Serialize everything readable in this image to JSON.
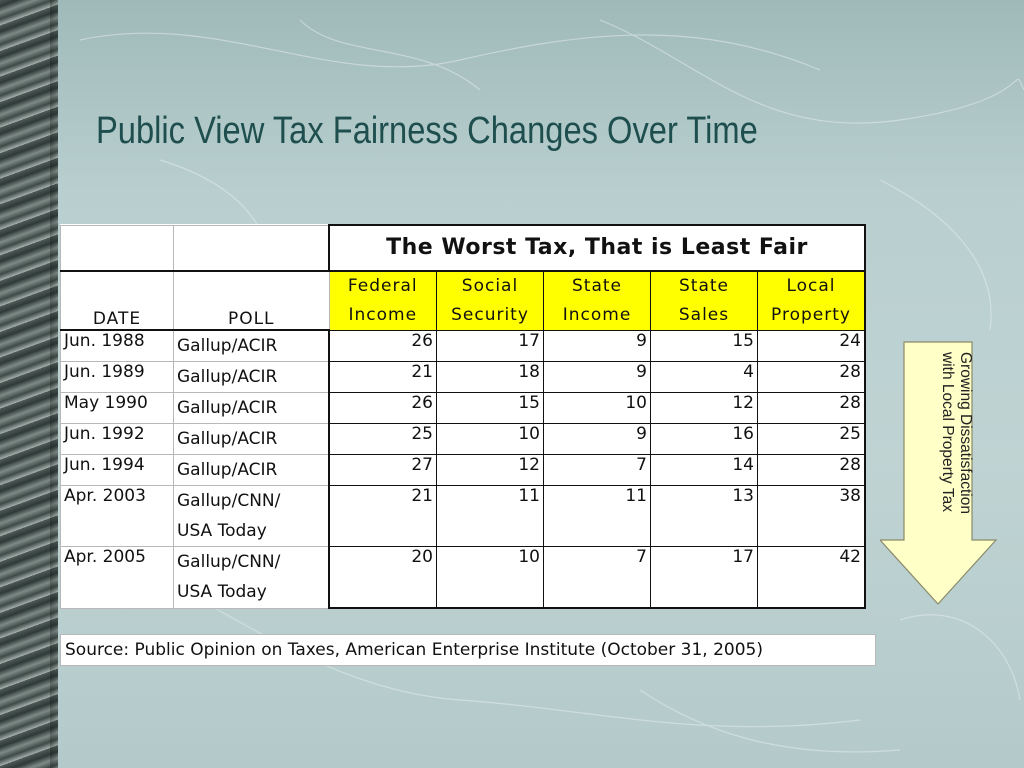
{
  "slide": {
    "title": "Public View Tax Fairness Changes Over Time"
  },
  "table": {
    "main_header": "The Worst Tax, That is Least Fair",
    "col_date": "DATE",
    "col_poll": "POLL",
    "tax_columns": [
      {
        "line1": "Federal",
        "line2": "Income"
      },
      {
        "line1": "Social",
        "line2": "Security"
      },
      {
        "line1": "State",
        "line2": "Income"
      },
      {
        "line1": "State",
        "line2": "Sales"
      },
      {
        "line1": "Local",
        "line2": "Property"
      }
    ],
    "rows": [
      {
        "date": "Jun. 1988",
        "poll": "Gallup/ACIR",
        "poll2": "",
        "values": [
          "26",
          "17",
          "9",
          "15",
          "24"
        ]
      },
      {
        "date": "Jun. 1989",
        "poll": "Gallup/ACIR",
        "poll2": "",
        "values": [
          "21",
          "18",
          "9",
          "4",
          "28"
        ]
      },
      {
        "date": "May 1990",
        "poll": "Gallup/ACIR",
        "poll2": "",
        "values": [
          "26",
          "15",
          "10",
          "12",
          "28"
        ]
      },
      {
        "date": "Jun. 1992",
        "poll": "Gallup/ACIR",
        "poll2": "",
        "values": [
          "25",
          "10",
          "9",
          "16",
          "25"
        ]
      },
      {
        "date": "Jun. 1994",
        "poll": "Gallup/ACIR",
        "poll2": "",
        "values": [
          "27",
          "12",
          "7",
          "14",
          "28"
        ]
      },
      {
        "date": "Apr. 2003",
        "poll": "Gallup/CNN/",
        "poll2": "USA Today",
        "values": [
          "21",
          "11",
          "11",
          "13",
          "38"
        ]
      },
      {
        "date": "Apr. 2005",
        "poll": "Gallup/CNN/",
        "poll2": "USA Today",
        "values": [
          "20",
          "10",
          "7",
          "17",
          "42"
        ]
      }
    ],
    "source": "Source: Public Opinion on Taxes, American Enterprise Institute (October 31, 2005)"
  },
  "callout": {
    "line1": "Growing Dissatisfaction",
    "line2": "with Local Property Tax"
  },
  "colors": {
    "header_yellow": "#ffff00",
    "title": "#1f4e4e",
    "arrow_fill": "#ffffc8"
  }
}
